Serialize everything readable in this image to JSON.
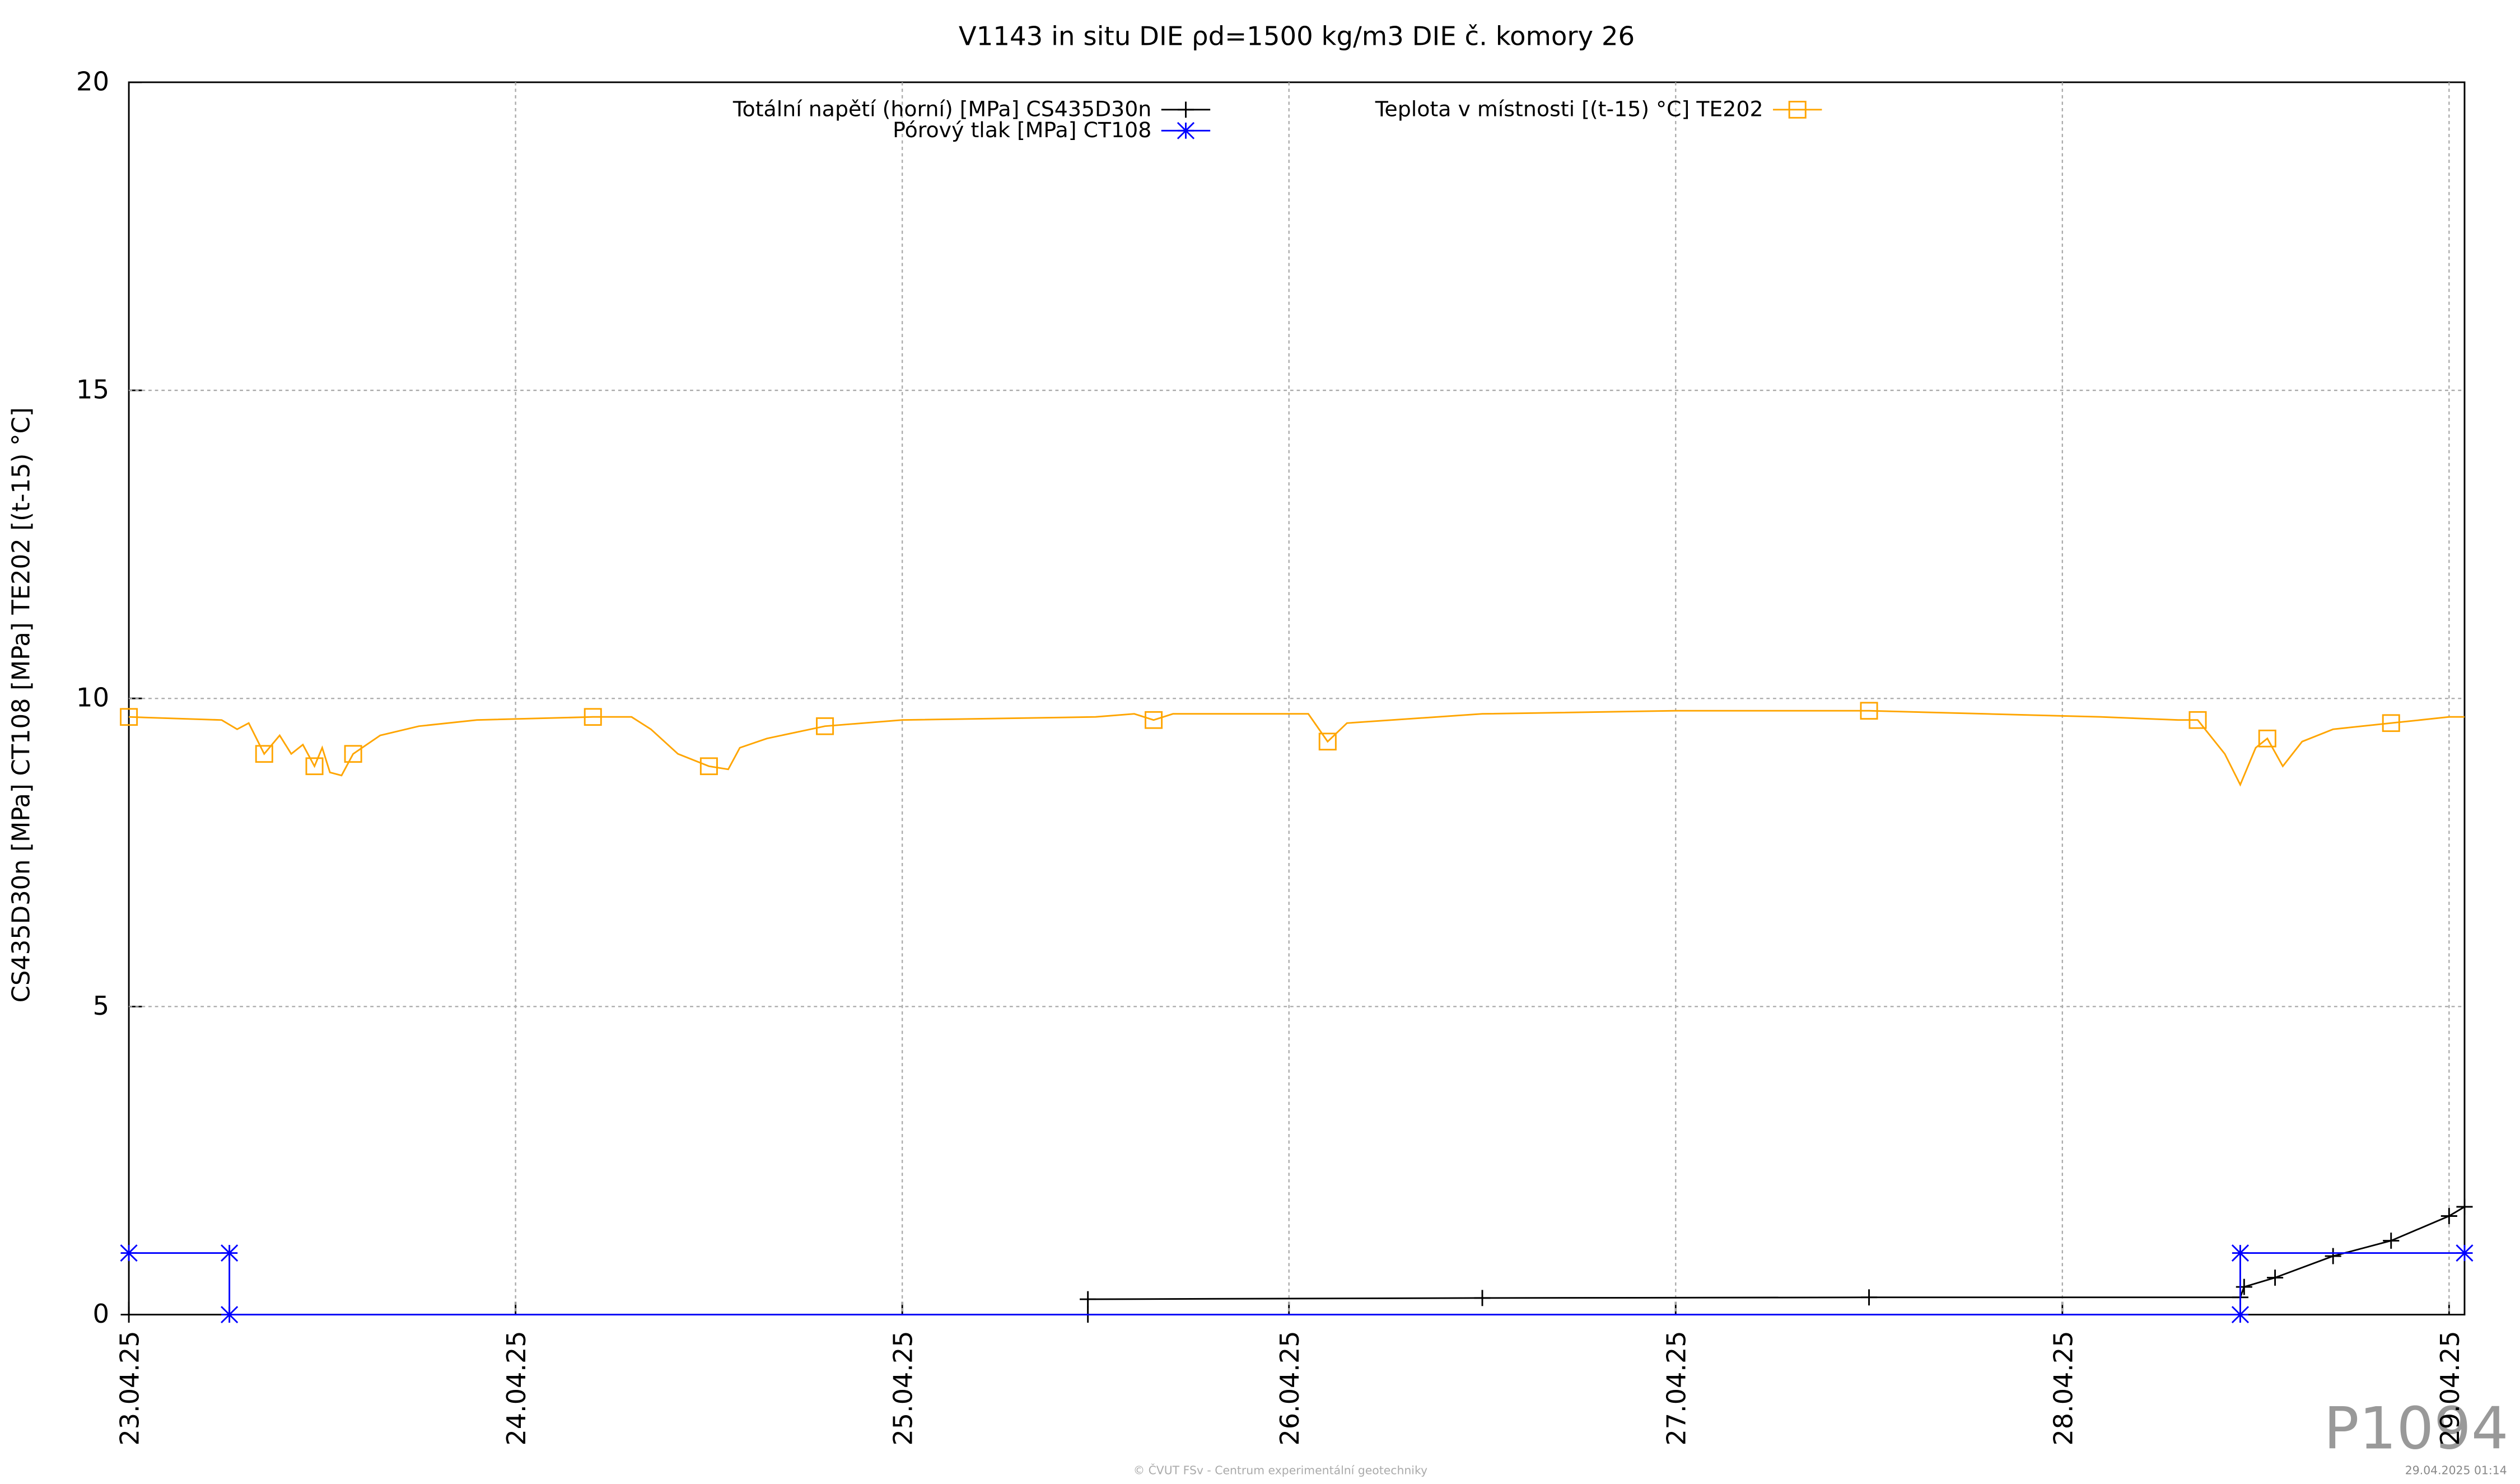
{
  "chart_data": {
    "type": "line",
    "title": "V1143 in situ DIE ρd=1500 kg/m3 DIE č. komory 26",
    "y_label": "CS435D30n [MPa] CT108 [MPa] TE202 [(t-15) °C]",
    "xlim": [
      0,
      6.04
    ],
    "ylim": [
      0,
      20
    ],
    "yticks": [
      0,
      5,
      10,
      15,
      20
    ],
    "xticks": [
      {
        "value": 0,
        "label": "23.04.25"
      },
      {
        "value": 1,
        "label": "24.04.25"
      },
      {
        "value": 2,
        "label": "25.04.25"
      },
      {
        "value": 3,
        "label": "26.04.25"
      },
      {
        "value": 4,
        "label": "27.04.25"
      },
      {
        "value": 5,
        "label": "28.04.25"
      },
      {
        "value": 6,
        "label": "29.04.25"
      }
    ],
    "grid": true,
    "series": [
      {
        "name": "Totální napětí (horní) [MPa] CS435D30n",
        "color": "#000000",
        "marker": "plus",
        "x": [
          0,
          2.48,
          2.48,
          3.5,
          4.5,
          5.46,
          5.47,
          5.55,
          5.7,
          5.85,
          6.0,
          6.04
        ],
        "values": [
          0,
          0,
          0.25,
          0.27,
          0.28,
          0.28,
          0.45,
          0.6,
          0.95,
          1.2,
          1.6,
          1.75
        ]
      },
      {
        "name": "Pórový tlak [MPa] CT108",
        "color": "#0000ff",
        "marker": "star",
        "x": [
          0,
          0.26,
          0.26,
          5.46,
          5.46,
          6.04
        ],
        "values": [
          1,
          1,
          0,
          0,
          1,
          1
        ]
      },
      {
        "name": "Teplota v místnosti [(t-15) °C] TE202",
        "color": "#ffa500",
        "marker": "square",
        "x": [
          0,
          0.24,
          0.28,
          0.31,
          0.35,
          0.39,
          0.42,
          0.45,
          0.48,
          0.5,
          0.52,
          0.55,
          0.58,
          0.65,
          0.75,
          0.9,
          1.2,
          1.3,
          1.35,
          1.42,
          1.5,
          1.55,
          1.58,
          1.65,
          1.8,
          2.0,
          2.5,
          2.6,
          2.65,
          2.7,
          3.0,
          3.05,
          3.1,
          3.15,
          3.5,
          4.0,
          4.5,
          4.8,
          5.1,
          5.3,
          5.35,
          5.42,
          5.46,
          5.5,
          5.53,
          5.57,
          5.62,
          5.7,
          5.85,
          6.0,
          6.04
        ],
        "values": [
          9.7,
          9.65,
          9.5,
          9.6,
          9.1,
          9.4,
          9.1,
          9.25,
          8.9,
          9.2,
          8.8,
          8.75,
          9.1,
          9.4,
          9.55,
          9.65,
          9.7,
          9.7,
          9.5,
          9.1,
          8.9,
          8.85,
          9.2,
          9.35,
          9.55,
          9.65,
          9.7,
          9.75,
          9.65,
          9.75,
          9.75,
          9.75,
          9.3,
          9.6,
          9.75,
          9.8,
          9.8,
          9.75,
          9.7,
          9.65,
          9.65,
          9.1,
          8.6,
          9.2,
          9.35,
          8.9,
          9.3,
          9.5,
          9.6,
          9.7,
          9.7
        ]
      }
    ],
    "footer": "© ČVUT FSv - Centrum experimentální geotechniky",
    "timestamp": "29.04.2025 01:14",
    "id_label": "P1094"
  }
}
